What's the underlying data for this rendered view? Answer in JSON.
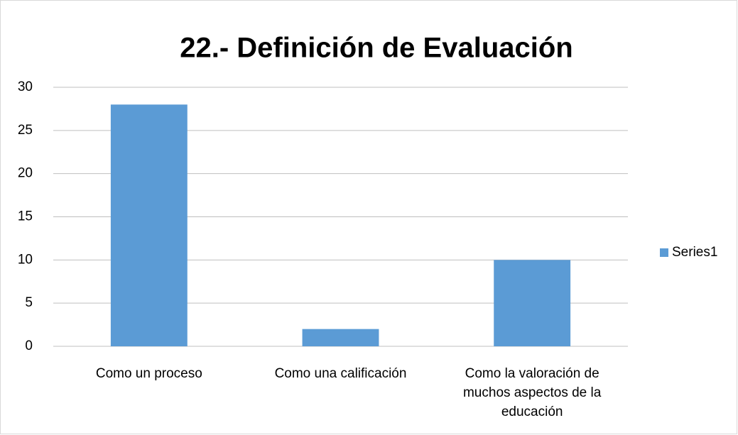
{
  "chart_data": {
    "type": "bar",
    "title": "22.- Definición de Evaluación",
    "categories": [
      "Como un proceso",
      "Como una calificación",
      "Como la valoración de muchos aspectos de la educación"
    ],
    "series": [
      {
        "name": "Series1",
        "color": "#5b9bd5",
        "values": [
          28,
          2,
          10
        ]
      }
    ],
    "ylim": [
      0,
      30
    ],
    "yticks": [
      0,
      5,
      10,
      15,
      20,
      25,
      30
    ],
    "grid": true,
    "legend": "right"
  }
}
